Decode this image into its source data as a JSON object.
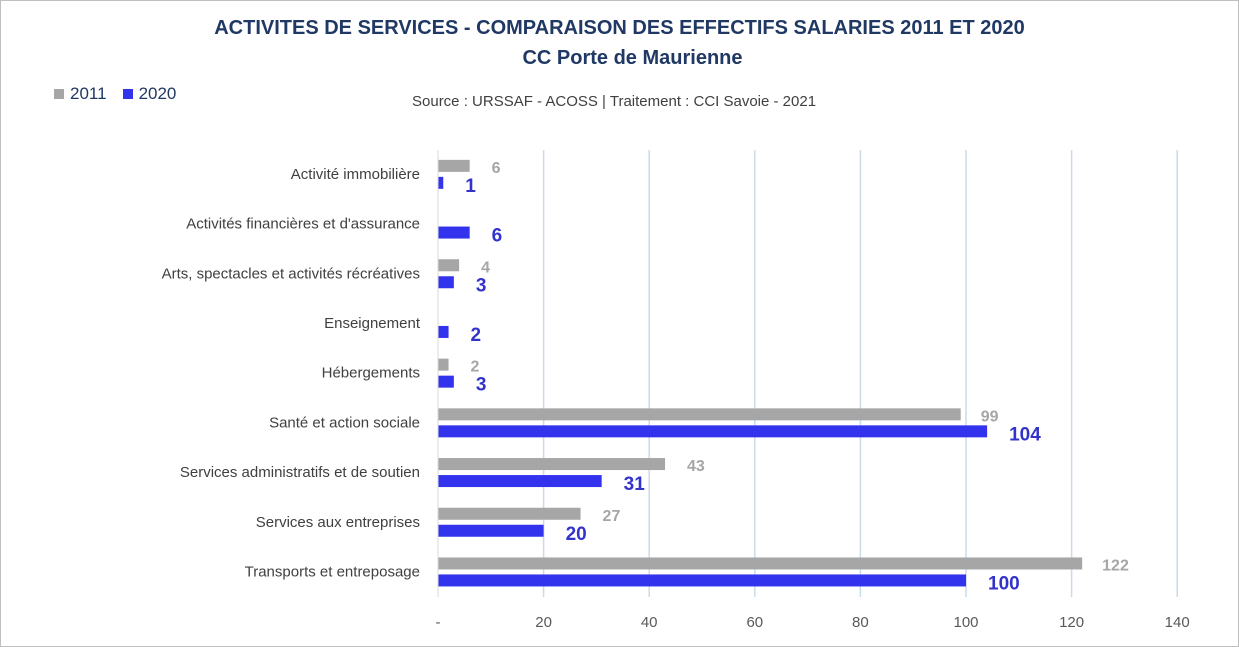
{
  "chart_data": {
    "type": "bar",
    "orientation": "horizontal",
    "title": "ACTIVITES DE SERVICES - COMPARAISON DES EFFECTIFS SALARIES 2011 ET 2020",
    "subtitle": "CC Porte de Maurienne",
    "source": "Source  : URSSAF - ACOSS  |  Traitement : CCI Savoie - 2021",
    "categories": [
      "Activité immobilière",
      "Activités financières et d'assurance",
      "Arts, spectacles et activités récréatives",
      "Enseignement",
      "Hébergements",
      "Santé et action sociale",
      "Services administratifs et de soutien",
      "Services aux entreprises",
      "Transports et entreposage"
    ],
    "series": [
      {
        "name": "2011",
        "color": "#a6a6a6",
        "values": [
          6,
          null,
          4,
          null,
          2,
          99,
          43,
          27,
          122
        ]
      },
      {
        "name": "2020",
        "color": "#3333ee",
        "values": [
          1,
          6,
          3,
          2,
          3,
          104,
          31,
          20,
          100
        ]
      }
    ],
    "xlim": [
      0,
      140
    ],
    "xticks": [
      0,
      20,
      40,
      60,
      80,
      100,
      120,
      140
    ],
    "xtick_labels": [
      "-",
      "20",
      "40",
      "60",
      "80",
      "100",
      "120",
      "140"
    ],
    "grid": true,
    "legend_position": "top-left"
  }
}
